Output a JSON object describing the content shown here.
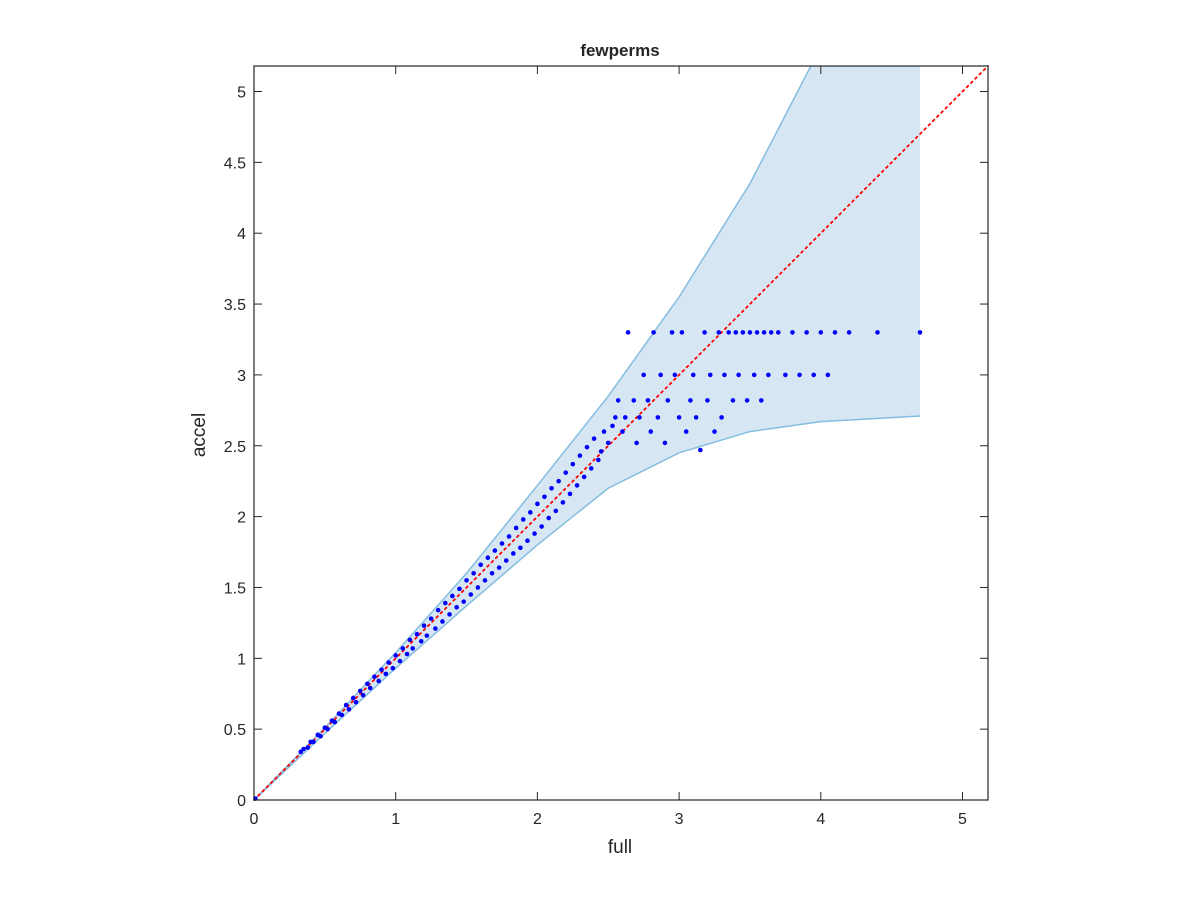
{
  "colors": {
    "band_fill": "#d6e7f3",
    "band_edge": "#84bde0",
    "points": "#0000ff",
    "identity_line": "#ff0000",
    "axes": "#262626"
  },
  "chart_data": {
    "type": "scatter",
    "title": "fewperms",
    "xlabel": "full",
    "ylabel": "accel",
    "xlim": [
      0,
      5.18
    ],
    "ylim": [
      0,
      5.18
    ],
    "xticks": [
      "0",
      "1",
      "2",
      "3",
      "4",
      "5"
    ],
    "yticks": [
      "0",
      "0.5",
      "1",
      "1.5",
      "2",
      "2.5",
      "3",
      "3.5",
      "4",
      "4.5",
      "5"
    ],
    "grid": false,
    "legend": "none",
    "identity_line": {
      "style": "dotted",
      "from": [
        0,
        0
      ],
      "to": [
        5.18,
        5.18
      ]
    },
    "band": {
      "upper": [
        [
          0,
          0
        ],
        [
          0.5,
          0.51
        ],
        [
          1,
          1.04
        ],
        [
          1.5,
          1.6
        ],
        [
          2,
          2.22
        ],
        [
          2.5,
          2.85
        ],
        [
          3,
          3.55
        ],
        [
          3.5,
          4.35
        ],
        [
          3.93,
          5.18
        ],
        [
          4.7,
          5.18
        ]
      ],
      "lower": [
        [
          0,
          0
        ],
        [
          0.5,
          0.47
        ],
        [
          1,
          0.93
        ],
        [
          1.5,
          1.37
        ],
        [
          2,
          1.8
        ],
        [
          2.5,
          2.2
        ],
        [
          3,
          2.45
        ],
        [
          3.5,
          2.6
        ],
        [
          4,
          2.67
        ],
        [
          4.7,
          2.71
        ]
      ]
    },
    "series": [
      {
        "points": [
          [
            0.01,
            0.01
          ],
          [
            0.33,
            0.34
          ],
          [
            0.35,
            0.36
          ],
          [
            0.38,
            0.37
          ],
          [
            0.4,
            0.41
          ],
          [
            0.42,
            0.41
          ],
          [
            0.45,
            0.46
          ],
          [
            0.47,
            0.45
          ],
          [
            0.5,
            0.51
          ],
          [
            0.52,
            0.5
          ],
          [
            0.55,
            0.56
          ],
          [
            0.57,
            0.55
          ],
          [
            0.6,
            0.61
          ],
          [
            0.62,
            0.6
          ],
          [
            0.65,
            0.67
          ],
          [
            0.67,
            0.64
          ],
          [
            0.7,
            0.72
          ],
          [
            0.72,
            0.69
          ],
          [
            0.75,
            0.77
          ],
          [
            0.77,
            0.74
          ],
          [
            0.8,
            0.82
          ],
          [
            0.82,
            0.79
          ],
          [
            0.85,
            0.87
          ],
          [
            0.88,
            0.84
          ],
          [
            0.9,
            0.92
          ],
          [
            0.93,
            0.89
          ],
          [
            0.95,
            0.97
          ],
          [
            0.98,
            0.93
          ],
          [
            1.0,
            1.02
          ],
          [
            1.03,
            0.98
          ],
          [
            1.05,
            1.07
          ],
          [
            1.08,
            1.03
          ],
          [
            1.1,
            1.13
          ],
          [
            1.12,
            1.07
          ],
          [
            1.15,
            1.17
          ],
          [
            1.18,
            1.12
          ],
          [
            1.2,
            1.23
          ],
          [
            1.22,
            1.16
          ],
          [
            1.25,
            1.28
          ],
          [
            1.28,
            1.21
          ],
          [
            1.3,
            1.34
          ],
          [
            1.33,
            1.26
          ],
          [
            1.35,
            1.39
          ],
          [
            1.38,
            1.31
          ],
          [
            1.4,
            1.44
          ],
          [
            1.43,
            1.36
          ],
          [
            1.45,
            1.49
          ],
          [
            1.48,
            1.4
          ],
          [
            1.5,
            1.55
          ],
          [
            1.53,
            1.45
          ],
          [
            1.55,
            1.6
          ],
          [
            1.58,
            1.5
          ],
          [
            1.6,
            1.66
          ],
          [
            1.63,
            1.55
          ],
          [
            1.65,
            1.71
          ],
          [
            1.68,
            1.6
          ],
          [
            1.7,
            1.76
          ],
          [
            1.73,
            1.64
          ],
          [
            1.75,
            1.81
          ],
          [
            1.78,
            1.69
          ],
          [
            1.8,
            1.86
          ],
          [
            1.83,
            1.74
          ],
          [
            1.85,
            1.92
          ],
          [
            1.88,
            1.78
          ],
          [
            1.9,
            1.98
          ],
          [
            1.93,
            1.83
          ],
          [
            1.95,
            2.03
          ],
          [
            1.98,
            1.88
          ],
          [
            2.0,
            2.09
          ],
          [
            2.03,
            1.93
          ],
          [
            2.05,
            2.14
          ],
          [
            2.08,
            1.99
          ],
          [
            2.1,
            2.2
          ],
          [
            2.13,
            2.04
          ],
          [
            2.15,
            2.25
          ],
          [
            2.18,
            2.1
          ],
          [
            2.2,
            2.31
          ],
          [
            2.23,
            2.16
          ],
          [
            2.25,
            2.37
          ],
          [
            2.28,
            2.22
          ],
          [
            2.3,
            2.43
          ],
          [
            2.33,
            2.28
          ],
          [
            2.35,
            2.49
          ],
          [
            2.38,
            2.34
          ],
          [
            2.4,
            2.55
          ],
          [
            2.43,
            2.4
          ],
          [
            2.45,
            2.46
          ],
          [
            2.47,
            2.6
          ],
          [
            2.5,
            2.52
          ],
          [
            2.53,
            2.64
          ],
          [
            2.55,
            2.7
          ],
          [
            2.57,
            2.82
          ],
          [
            2.6,
            2.6
          ],
          [
            2.62,
            2.7
          ],
          [
            2.64,
            3.3
          ],
          [
            2.68,
            2.82
          ],
          [
            2.7,
            2.52
          ],
          [
            2.72,
            2.7
          ],
          [
            2.75,
            3.0
          ],
          [
            2.78,
            2.82
          ],
          [
            2.8,
            2.6
          ],
          [
            2.82,
            3.3
          ],
          [
            2.85,
            2.7
          ],
          [
            2.87,
            3.0
          ],
          [
            2.9,
            2.52
          ],
          [
            2.92,
            2.82
          ],
          [
            2.95,
            3.3
          ],
          [
            2.97,
            3.0
          ],
          [
            3.0,
            2.7
          ],
          [
            3.02,
            3.3
          ],
          [
            3.05,
            2.6
          ],
          [
            3.08,
            2.82
          ],
          [
            3.1,
            3.0
          ],
          [
            3.12,
            2.7
          ],
          [
            3.15,
            2.47
          ],
          [
            3.18,
            3.3
          ],
          [
            3.2,
            2.82
          ],
          [
            3.22,
            3.0
          ],
          [
            3.25,
            2.6
          ],
          [
            3.28,
            3.3
          ],
          [
            3.3,
            2.7
          ],
          [
            3.32,
            3.0
          ],
          [
            3.35,
            3.3
          ],
          [
            3.38,
            2.82
          ],
          [
            3.4,
            3.3
          ],
          [
            3.42,
            3.0
          ],
          [
            3.45,
            3.3
          ],
          [
            3.48,
            2.82
          ],
          [
            3.5,
            3.3
          ],
          [
            3.53,
            3.0
          ],
          [
            3.55,
            3.3
          ],
          [
            3.58,
            2.82
          ],
          [
            3.6,
            3.3
          ],
          [
            3.63,
            3.0
          ],
          [
            3.65,
            3.3
          ],
          [
            3.7,
            3.3
          ],
          [
            3.75,
            3.0
          ],
          [
            3.8,
            3.3
          ],
          [
            3.85,
            3.0
          ],
          [
            3.9,
            3.3
          ],
          [
            3.95,
            3.0
          ],
          [
            4.0,
            3.3
          ],
          [
            4.05,
            3.0
          ],
          [
            4.1,
            3.3
          ],
          [
            4.2,
            3.3
          ],
          [
            4.4,
            3.3
          ],
          [
            4.7,
            3.3
          ]
        ]
      }
    ]
  }
}
